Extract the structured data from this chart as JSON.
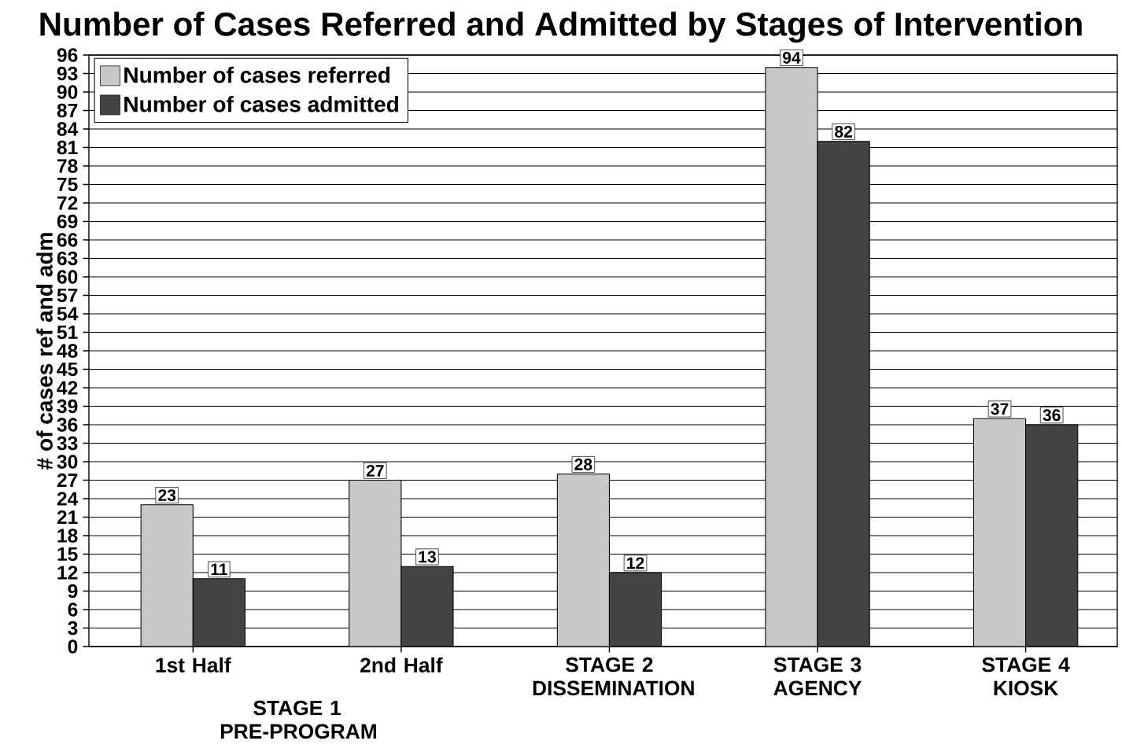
{
  "chart_data": {
    "type": "bar",
    "title": "Number of Cases Referred and Admitted by Stages of Intervention",
    "ylabel": "# of cases ref and adm",
    "categories": [
      "1st Half",
      "2nd Half",
      "STAGE 2 DISSEMINATION",
      "STAGE 3 AGENCY",
      "STAGE 4 KIOSK"
    ],
    "series": [
      {
        "name": "Number of cases referred",
        "color": "#c8c8c8",
        "values": [
          23,
          27,
          28,
          94,
          37
        ]
      },
      {
        "name": "Number of cases admitted",
        "color": "#444444",
        "values": [
          11,
          13,
          12,
          82,
          36
        ]
      }
    ],
    "ylim": [
      0,
      96
    ],
    "yticks": [
      0,
      3,
      6,
      9,
      12,
      15,
      18,
      21,
      24,
      27,
      30,
      33,
      36,
      39,
      42,
      45,
      48,
      51,
      54,
      57,
      60,
      63,
      66,
      69,
      72,
      75,
      78,
      81,
      84,
      87,
      90,
      93,
      96
    ],
    "grid": "y",
    "legend": "top left",
    "data_labels": true,
    "annotations": [
      "STAGE 1 PRE-PROGRAM"
    ]
  }
}
